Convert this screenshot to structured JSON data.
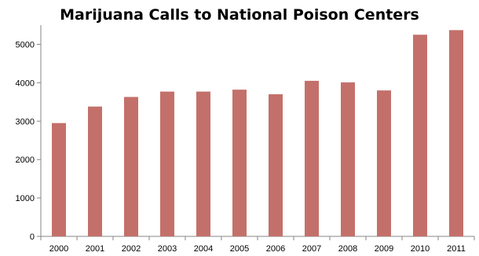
{
  "chart_data": {
    "type": "bar",
    "title": "Marijuana Calls to National Poison Centers",
    "xlabel": "",
    "ylabel": "",
    "categories": [
      "2000",
      "2001",
      "2002",
      "2003",
      "2004",
      "2005",
      "2006",
      "2007",
      "2008",
      "2009",
      "2010",
      "2011"
    ],
    "series": [
      {
        "values": [
          2950,
          3380,
          3630,
          3770,
          3770,
          3820,
          3700,
          4050,
          4010,
          3800,
          5250,
          5370
        ]
      }
    ],
    "ylim": [
      0,
      5500
    ],
    "yticks": [
      0,
      1000,
      2000,
      3000,
      4000,
      5000
    ],
    "grid": false,
    "legend": "none",
    "colors": {
      "bar": "#c4706a",
      "axis": "#868686"
    }
  }
}
